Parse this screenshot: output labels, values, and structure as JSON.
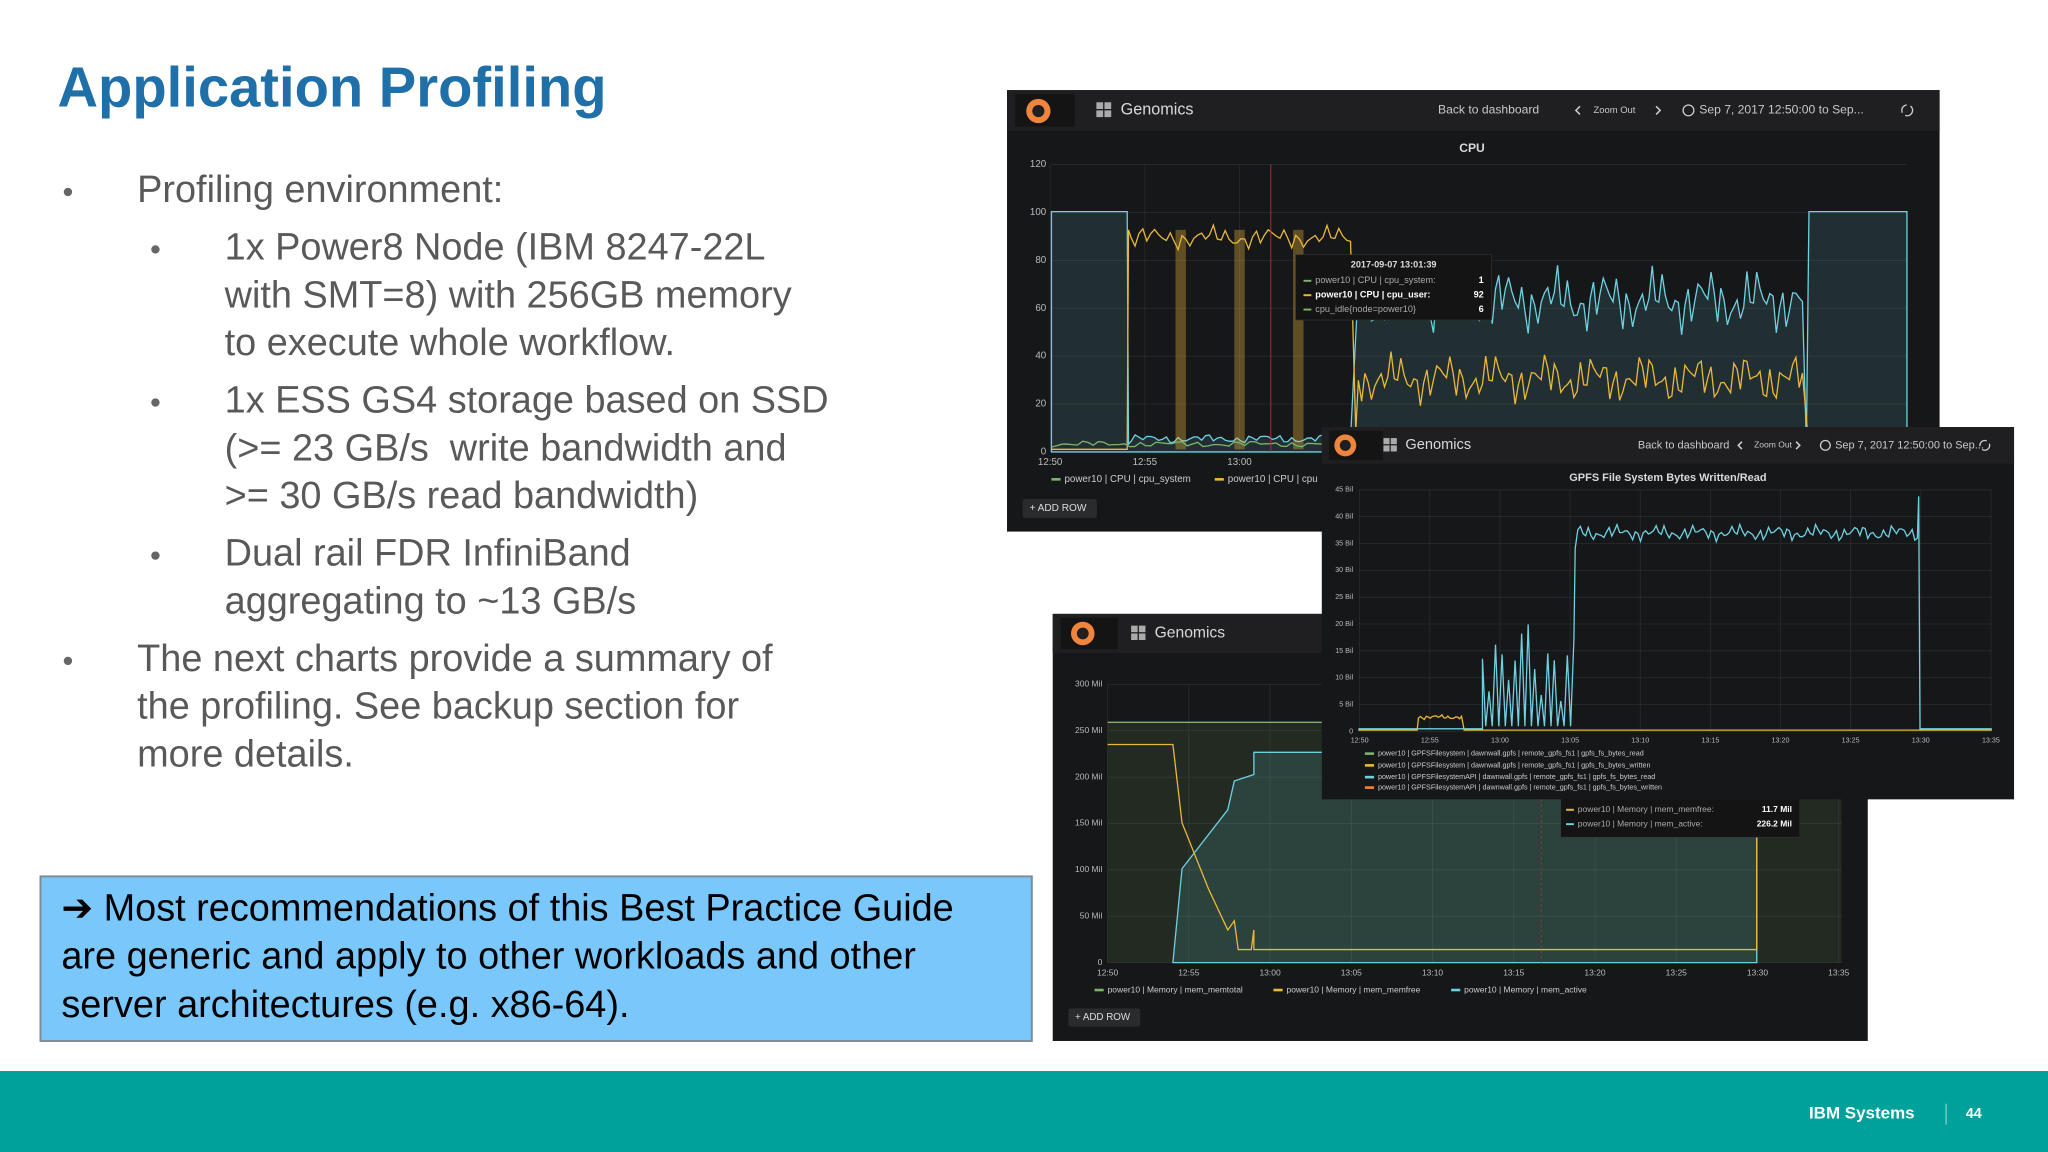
{
  "title": "Application Profiling",
  "bullets": [
    {
      "lines": [
        "Profiling environment:"
      ],
      "sub": [
        {
          "lines": [
            "1x Power8 Node (IBM 8247-22L",
            "with SMT=8) with 256GB memory",
            "to execute whole workflow."
          ]
        },
        {
          "lines": [
            "1x ESS GS4 storage based on SSD",
            "(>= 23 GB/s  write bandwidth and",
            ">= 30 GB/s read bandwidth)"
          ]
        },
        {
          "lines": [
            "Dual rail FDR InfiniBand",
            "aggregating to ~13 GB/s"
          ]
        }
      ]
    },
    {
      "lines": [
        "The next charts provide a summary of",
        "the profiling. See backup section for",
        "more details."
      ]
    }
  ],
  "callout": {
    "lines": [
      "➔ Most recommendations of this Best Practice Guide",
      "are generic and apply to other workloads and other",
      "server architectures (e.g. x86-64)."
    ]
  },
  "panels": {
    "memory": {
      "dashboard": "Genomics",
      "yticks": [
        "0",
        "50 Mil",
        "100 Mil",
        "150 Mil",
        "200 Mil",
        "250 Mil",
        "300 Mil"
      ],
      "xticks": [
        "12:50",
        "12:55",
        "13:00",
        "13:05",
        "13:10",
        "13:15",
        "13:20",
        "13:25",
        "13:30",
        "13:35"
      ],
      "legend": [
        "power10 | Memory | mem_memtotal",
        "power10 | Memory | mem_memfree",
        "power10 | Memory | mem_active"
      ],
      "add_row": "+ ADD ROW",
      "tooltip": {
        "rows": [
          {
            "label": "power10 | Memory | mem_memfree:",
            "value": "11.7 Mil"
          },
          {
            "label": "power10 | Memory | mem_active:",
            "value": "226.2 Mil"
          }
        ]
      }
    },
    "cpu": {
      "dashboard": "Genomics",
      "back": "Back to dashboard",
      "zoom": "Zoom Out",
      "range": "Sep 7, 2017 12:50:00 to Sep...",
      "title": "CPU",
      "yticks": [
        "0",
        "20",
        "40",
        "60",
        "80",
        "100",
        "120"
      ],
      "xticks": [
        "12:50",
        "12:55",
        "13:00"
      ],
      "legend": [
        "power10 | CPU | cpu_system",
        "power10 | CPU | cpu"
      ],
      "add_row": "+ ADD ROW",
      "tooltip": {
        "time": "2017-09-07 13:01:39",
        "rows": [
          {
            "label": "power10 | CPU | cpu_system:",
            "value": "1"
          },
          {
            "label": "power10 | CPU | cpu_user:",
            "value": "92"
          },
          {
            "label": "cpu_idle{node=power10}",
            "value": "6"
          }
        ]
      }
    },
    "gpfs": {
      "dashboard": "Genomics",
      "back": "Back to dashboard",
      "zoom": "Zoom Out",
      "range": "Sep 7, 2017 12:50:00 to Sep...",
      "title": "GPFS File System Bytes Written/Read",
      "yticks": [
        "0",
        "5 Bil",
        "10 Bil",
        "15 Bil",
        "20 Bil",
        "25 Bil",
        "30 Bil",
        "35 Bil",
        "40 Bil",
        "45 Bil"
      ],
      "xticks": [
        "12:50",
        "12:55",
        "13:00",
        "13:05",
        "13:10",
        "13:15",
        "13:20",
        "13:25",
        "13:30",
        "13:35"
      ],
      "legend": [
        "power10 | GPFSFilesystem | dawnwall.gpfs | remote_gpfs_fs1 | gpfs_fs_bytes_read",
        "power10 | GPFSFilesystem | dawnwall.gpfs | remote_gpfs_fs1 | gpfs_fs_bytes_written",
        "power10 | GPFSFilesystemAPI | dawnwall.gpfs | remote_gpfs_fs1 | gpfs_fs_bytes_read",
        "power10 | GPFSFilesystemAPI | dawnwall.gpfs | remote_gpfs_fs1 | gpfs_fs_bytes_written"
      ]
    }
  },
  "footer": {
    "brand": "IBM Systems",
    "page": "44"
  }
}
